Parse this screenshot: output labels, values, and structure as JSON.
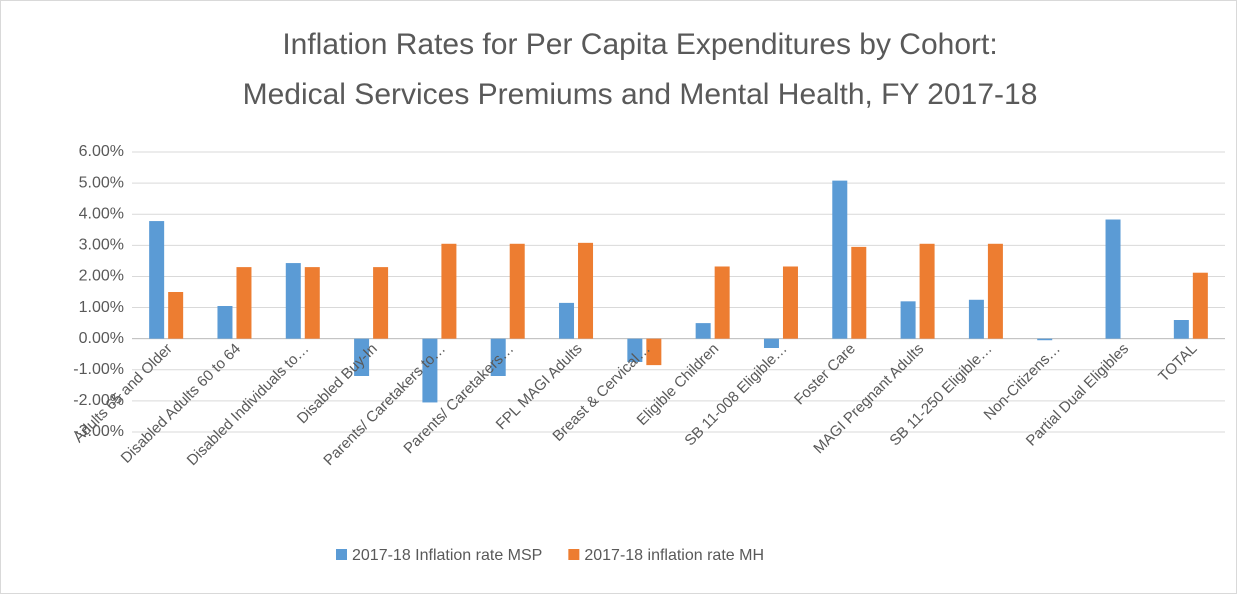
{
  "chart_data": {
    "type": "bar",
    "title": "Inflation Rates for Per Capita Expenditures by Cohort:",
    "subtitle": "Medical Services Premiums and Mental Health, FY 2017-18",
    "categories": [
      "Adults 65 and Older",
      "Disabled Adults 60 to 64",
      "Disabled Individuals to…",
      "Disabled Buy-In",
      "Parents/ Caretakers to…",
      "Parents/ Caretakers…",
      "FPL MAGI Adults",
      "Breast & Cervical…",
      "Eligible Children",
      "SB 11-008 Eligible…",
      "Foster Care",
      "MAGI Pregnant Adults",
      "SB 11-250 Eligible…",
      "Non-Citizens…",
      "Partial Dual Eligibles",
      "TOTAL"
    ],
    "series": [
      {
        "name": "2017-18 Inflation rate MSP",
        "color": "#5b9bd5",
        "values": [
          3.78,
          1.05,
          2.43,
          -1.2,
          -2.05,
          -1.2,
          1.15,
          -0.75,
          0.5,
          -0.3,
          5.08,
          1.2,
          1.25,
          -0.05,
          3.83,
          0.6
        ]
      },
      {
        "name": "2017-18 inflation rate MH",
        "color": "#ed7d31",
        "values": [
          1.5,
          2.3,
          2.3,
          2.3,
          3.05,
          3.05,
          3.08,
          -0.85,
          2.32,
          2.32,
          2.95,
          3.05,
          3.05,
          0,
          0,
          2.12
        ]
      }
    ],
    "ylim": [
      -3,
      6
    ],
    "yticks": [
      {
        "value": -3,
        "label": "-3.00%"
      },
      {
        "value": -2,
        "label": "-2.00%"
      },
      {
        "value": -1,
        "label": "-1.00%"
      },
      {
        "value": 0,
        "label": "0.00%"
      },
      {
        "value": 1,
        "label": "1.00%"
      },
      {
        "value": 2,
        "label": "2.00%"
      },
      {
        "value": 3,
        "label": "3.00%"
      },
      {
        "value": 4,
        "label": "4.00%"
      },
      {
        "value": 5,
        "label": "5.00%"
      },
      {
        "value": 6,
        "label": "6.00%"
      }
    ],
    "grid": true,
    "legend": "bottom"
  }
}
